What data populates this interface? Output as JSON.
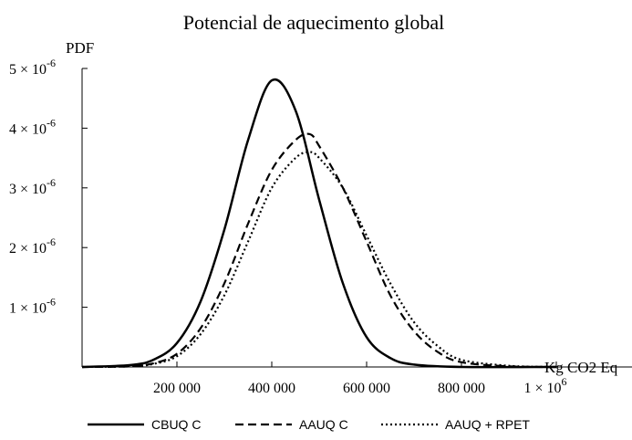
{
  "chart_data": {
    "type": "line",
    "title": "Potencial de aquecimento global",
    "xlabel": "Kg CO2 Eq",
    "ylabel": "PDF",
    "xlim": [
      0,
      1000000
    ],
    "ylim": [
      0,
      5e-06
    ],
    "x_ticks": [
      {
        "value": 200000,
        "label": "200 000"
      },
      {
        "value": 400000,
        "label": "400 000"
      },
      {
        "value": 600000,
        "label": "600 000"
      },
      {
        "value": 800000,
        "label": "800 000"
      },
      {
        "value": 1000000,
        "label": "1 × 10^6"
      }
    ],
    "y_ticks": [
      {
        "value": 1e-06,
        "label": "1 × 10^-6"
      },
      {
        "value": 2e-06,
        "label": "2 × 10^-6"
      },
      {
        "value": 3e-06,
        "label": "3 × 10^-6"
      },
      {
        "value": 4e-06,
        "label": "4 × 10^-6"
      },
      {
        "value": 5e-06,
        "label": "5 × 10^-6"
      }
    ],
    "grid": false,
    "legend_position": "bottom",
    "series": [
      {
        "name": "CBUQ C",
        "dash": "solid",
        "points": [
          [
            0,
            0
          ],
          [
            100000,
            3e-08
          ],
          [
            150000,
            1.2e-07
          ],
          [
            200000,
            4e-07
          ],
          [
            250000,
            1.1e-06
          ],
          [
            300000,
            2.3e-06
          ],
          [
            350000,
            3.8e-06
          ],
          [
            400000,
            4.8e-06
          ],
          [
            450000,
            4.3e-06
          ],
          [
            500000,
            2.8e-06
          ],
          [
            550000,
            1.4e-06
          ],
          [
            600000,
            5e-07
          ],
          [
            650000,
            1.5e-07
          ],
          [
            700000,
            4e-08
          ],
          [
            800000,
            0
          ],
          [
            1000000,
            0
          ]
        ]
      },
      {
        "name": "AAUQ C",
        "dash": "dashed",
        "points": [
          [
            0,
            0
          ],
          [
            100000,
            1e-08
          ],
          [
            150000,
            6e-08
          ],
          [
            200000,
            2.2e-07
          ],
          [
            250000,
            6.5e-07
          ],
          [
            300000,
            1.4e-06
          ],
          [
            350000,
            2.4e-06
          ],
          [
            400000,
            3.3e-06
          ],
          [
            450000,
            3.8e-06
          ],
          [
            480000,
            3.9e-06
          ],
          [
            500000,
            3.7e-06
          ],
          [
            550000,
            3e-06
          ],
          [
            600000,
            2.1e-06
          ],
          [
            650000,
            1.2e-06
          ],
          [
            700000,
            6e-07
          ],
          [
            750000,
            2.5e-07
          ],
          [
            800000,
            8e-08
          ],
          [
            900000,
            1e-08
          ],
          [
            1000000,
            0
          ]
        ]
      },
      {
        "name": "AAUQ + RPET",
        "dash": "dotted",
        "points": [
          [
            0,
            0
          ],
          [
            100000,
            1e-08
          ],
          [
            150000,
            5e-08
          ],
          [
            200000,
            1.8e-07
          ],
          [
            250000,
            5.5e-07
          ],
          [
            300000,
            1.2e-06
          ],
          [
            350000,
            2.1e-06
          ],
          [
            400000,
            3e-06
          ],
          [
            450000,
            3.5e-06
          ],
          [
            480000,
            3.6e-06
          ],
          [
            500000,
            3.5e-06
          ],
          [
            550000,
            3e-06
          ],
          [
            600000,
            2.2e-06
          ],
          [
            650000,
            1.4e-06
          ],
          [
            700000,
            7.5e-07
          ],
          [
            750000,
            3.5e-07
          ],
          [
            800000,
            1.2e-07
          ],
          [
            900000,
            2e-08
          ],
          [
            1000000,
            0
          ]
        ]
      }
    ]
  }
}
